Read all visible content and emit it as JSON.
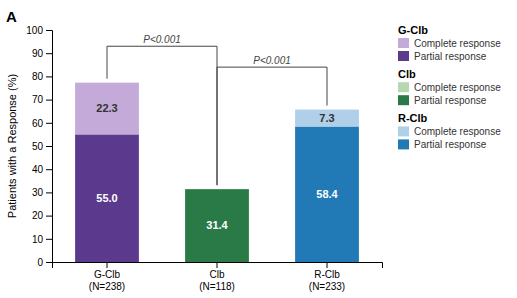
{
  "chart_data": {
    "type": "bar",
    "stacked": true,
    "data_labels": true,
    "grid": false,
    "legend": "right",
    "panel_label": "A",
    "ylabel": "Patients with a Response (%)",
    "categories": [
      "G-Clb\n(N=238)",
      "Clb\n(N=118)",
      "R-Clb\n(N=233)"
    ],
    "series": [
      {
        "name": "Partial response",
        "colors": [
          "#5b3a8e",
          "#2a7a48",
          "#2179b5"
        ],
        "values": [
          55.0,
          31.4,
          58.4
        ],
        "value_labels": [
          "55.0",
          "31.4",
          "58.4"
        ]
      },
      {
        "name": "Complete response",
        "colors": [
          "#c3aad8",
          "#b5d8b0",
          "#b0cfe8"
        ],
        "values": [
          22.3,
          0.0,
          7.3
        ],
        "value_labels": [
          "22.3",
          null,
          "7.3"
        ]
      }
    ],
    "ylim": [
      0,
      100
    ],
    "yticks": [
      0,
      10,
      20,
      30,
      40,
      50,
      60,
      70,
      80,
      90,
      100
    ],
    "annotations": [
      {
        "text": "P<0.001",
        "between": [
          0,
          1
        ],
        "y": 93,
        "color": "#444444"
      },
      {
        "text": "P<0.001",
        "between": [
          1,
          2
        ],
        "y": 84,
        "color": "#444444"
      }
    ],
    "legend_groups": [
      {
        "title": "G-Clb",
        "entries": [
          {
            "name": "Complete response",
            "color": "#c3aad8"
          },
          {
            "name": "Partial response",
            "color": "#5b3a8e"
          }
        ]
      },
      {
        "title": "Clb",
        "entries": [
          {
            "name": "Complete response",
            "color": "#b5d8b0"
          },
          {
            "name": "Partial response",
            "color": "#2a7a48"
          }
        ]
      },
      {
        "title": "R-Clb",
        "entries": [
          {
            "name": "Complete response",
            "color": "#b0cfe8"
          },
          {
            "name": "Partial response",
            "color": "#2179b5"
          }
        ]
      }
    ]
  }
}
